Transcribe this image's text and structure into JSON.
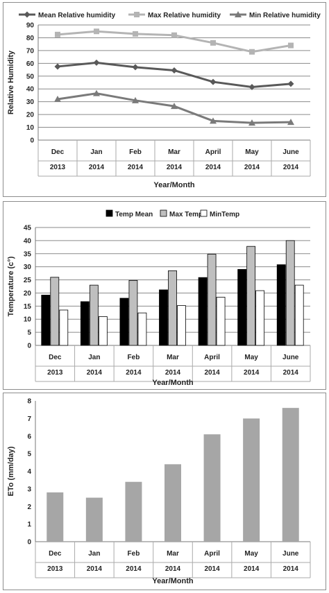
{
  "chart_data": [
    {
      "type": "line",
      "categories": [
        "Dec",
        "Jan",
        "Feb",
        "Mar",
        "April",
        "May",
        "June"
      ],
      "years": [
        "2013",
        "2014",
        "2014",
        "2014",
        "2014",
        "2014",
        "2014"
      ],
      "series": [
        {
          "name": "Mean Relative humidity",
          "values": [
            57.5,
            60.5,
            57,
            54.5,
            45.5,
            41.5,
            44
          ],
          "color": "#595959",
          "marker": "diamond"
        },
        {
          "name": "Max Relative humidity",
          "values": [
            82.5,
            85,
            83,
            82,
            76,
            69,
            74
          ],
          "color": "#b4b4b4",
          "marker": "square"
        },
        {
          "name": "Min Relative humidity",
          "values": [
            32,
            36.5,
            31,
            26.5,
            15,
            13.5,
            14
          ],
          "color": "#7a7a7a",
          "marker": "triangle"
        }
      ],
      "xlabel": "Year/Month",
      "ylabel": "Relative Humidity",
      "ylim": [
        0,
        90
      ],
      "yticks": [
        "0",
        "10",
        "20",
        "30",
        "40",
        "50",
        "60",
        "70",
        "80",
        "90"
      ],
      "grid": true,
      "legend": "top"
    },
    {
      "type": "bar",
      "categories": [
        "Dec",
        "Jan",
        "Feb",
        "Mar",
        "April",
        "May",
        "June"
      ],
      "years": [
        "2013",
        "2014",
        "2014",
        "2014",
        "2014",
        "2014",
        "2014"
      ],
      "series": [
        {
          "name": "Temp Mean",
          "values": [
            19.2,
            16.7,
            18,
            21.2,
            25.9,
            29,
            30.8
          ],
          "color": "#000000"
        },
        {
          "name": "Max Temp",
          "values": [
            26,
            23,
            24.8,
            28.5,
            34.8,
            37.8,
            40
          ],
          "color": "#bfbfbf"
        },
        {
          "name": "MinTemp",
          "values": [
            13.5,
            11,
            12.4,
            15.2,
            18.4,
            20.9,
            23
          ],
          "color": "#ffffff"
        }
      ],
      "xlabel": "Year/Month",
      "ylabel": "Temperature (c°)",
      "ylim": [
        0,
        45
      ],
      "yticks": [
        "0",
        "5",
        "10",
        "15",
        "20",
        "25",
        "30",
        "35",
        "40",
        "45"
      ],
      "grid": true,
      "legend": "top"
    },
    {
      "type": "bar",
      "categories": [
        "Dec",
        "Jan",
        "Feb",
        "Mar",
        "April",
        "May",
        "June"
      ],
      "years": [
        "2013",
        "2014",
        "2014",
        "2014",
        "2014",
        "2014",
        "2014"
      ],
      "series": [
        {
          "values": [
            2.8,
            2.5,
            3.4,
            4.4,
            6.1,
            7,
            7.6
          ],
          "color": "#a6a6a6"
        }
      ],
      "xlabel": "Year/Month",
      "ylabel": "ETo (mm/day)",
      "ylim": [
        0,
        8
      ],
      "yticks": [
        "0",
        "1",
        "2",
        "3",
        "4",
        "5",
        "6",
        "7",
        "8"
      ],
      "grid": false,
      "legend": "none"
    }
  ]
}
